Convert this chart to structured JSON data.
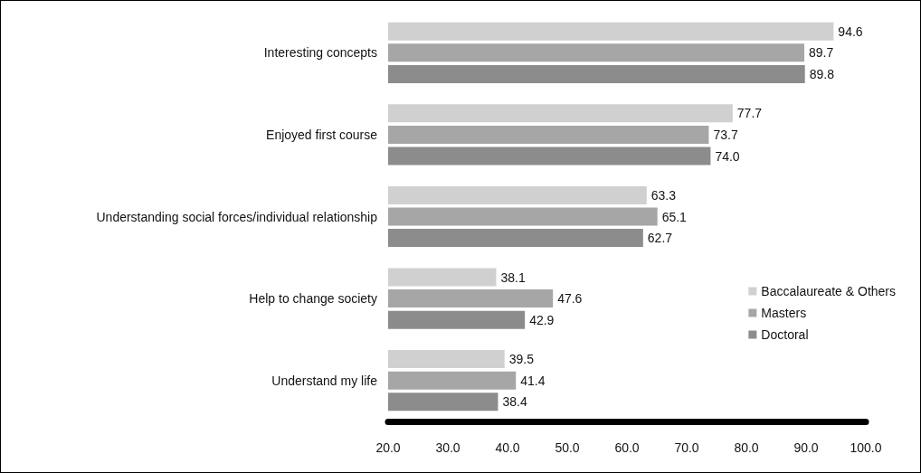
{
  "chart_data": {
    "type": "bar",
    "orientation": "horizontal",
    "categories": [
      "Interesting concepts",
      "Enjoyed first course",
      "Understanding social forces/individual relationship",
      "Help to change society",
      "Understand my life"
    ],
    "series": [
      {
        "name": "Baccalaureate & Others",
        "color": "#d0d0d0",
        "values": [
          94.6,
          77.7,
          63.3,
          38.1,
          39.5
        ],
        "value_labels": [
          "94.6",
          "77.7",
          "63.3",
          "38.1",
          "39.5"
        ]
      },
      {
        "name": "Masters",
        "color": "#a6a6a6",
        "values": [
          89.7,
          73.7,
          65.1,
          47.6,
          41.4
        ],
        "value_labels": [
          "89.7",
          "73.7",
          "65.1",
          "47.6",
          "41.4"
        ]
      },
      {
        "name": "Doctoral",
        "color": "#8c8c8c",
        "values": [
          89.8,
          74.0,
          62.7,
          42.9,
          38.4
        ],
        "value_labels": [
          "89.8",
          "74.0",
          "62.7",
          "42.9",
          "38.4"
        ]
      }
    ],
    "xlim": [
      20,
      100
    ],
    "xticks": [
      {
        "value": 20,
        "label": "20.0"
      },
      {
        "value": 30,
        "label": "30.0"
      },
      {
        "value": 40,
        "label": "40.0"
      },
      {
        "value": 50,
        "label": "50.0"
      },
      {
        "value": 60,
        "label": "60.0"
      },
      {
        "value": 70,
        "label": "70.0"
      },
      {
        "value": 80,
        "label": "80.0"
      },
      {
        "value": 90,
        "label": "90.0"
      },
      {
        "value": 100,
        "label": "100.0"
      }
    ],
    "grid": false,
    "legend": "bottom right"
  }
}
